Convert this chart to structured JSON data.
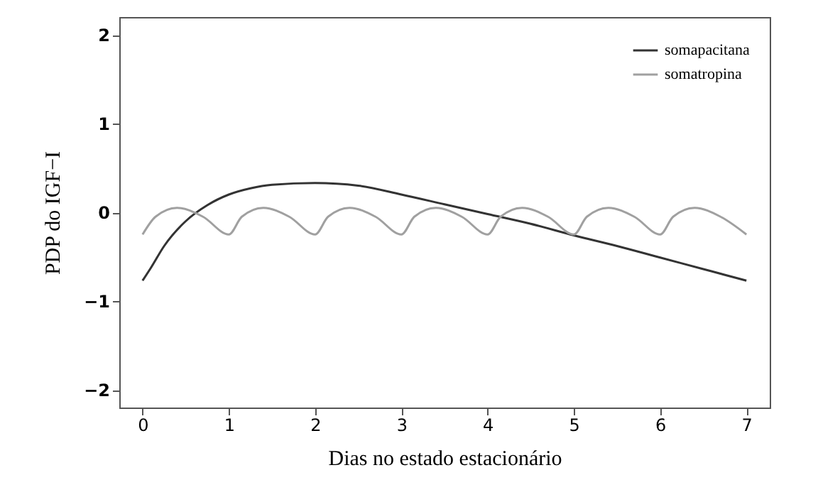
{
  "chart_data": {
    "type": "line",
    "xlabel": "Dias no estado estacionário",
    "ylabel": "PDP do IGF−I",
    "xlim": [
      -0.27,
      7.27
    ],
    "ylim": [
      -2.2,
      2.2
    ],
    "xticks": [
      0,
      1,
      2,
      3,
      4,
      5,
      6,
      7
    ],
    "yticks": [
      -2,
      -1,
      0,
      1,
      2
    ],
    "grid": false,
    "legend": "top right",
    "marker": "none",
    "line_style": "solid",
    "series": [
      {
        "name": "somapacitana",
        "color": "#333333",
        "x": [
          0,
          0.1,
          0.25,
          0.5,
          0.75,
          1,
          1.25,
          1.5,
          2,
          2.5,
          3,
          3.5,
          4,
          4.5,
          5,
          5.5,
          6,
          6.5,
          7
        ],
        "values": [
          -0.77,
          -0.62,
          -0.38,
          -0.1,
          0.08,
          0.2,
          0.27,
          0.31,
          0.33,
          0.3,
          0.2,
          0.09,
          -0.02,
          -0.13,
          -0.26,
          -0.38,
          -0.51,
          -0.64,
          -0.77
        ]
      },
      {
        "name": "somatropina",
        "color": "#a0a0a0",
        "x": [
          0,
          0.15,
          0.4,
          0.7,
          1,
          1.15,
          1.4,
          1.7,
          2,
          2.15,
          2.4,
          2.7,
          3,
          3.15,
          3.4,
          3.7,
          4,
          4.15,
          4.4,
          4.7,
          5,
          5.15,
          5.4,
          5.7,
          6,
          6.15,
          6.4,
          6.7,
          7
        ],
        "values": [
          -0.25,
          -0.05,
          0.05,
          -0.05,
          -0.25,
          -0.05,
          0.05,
          -0.05,
          -0.25,
          -0.05,
          0.05,
          -0.05,
          -0.25,
          -0.05,
          0.05,
          -0.05,
          -0.25,
          -0.05,
          0.05,
          -0.05,
          -0.25,
          -0.05,
          0.05,
          -0.05,
          -0.25,
          -0.05,
          0.05,
          -0.05,
          -0.25
        ]
      }
    ]
  }
}
